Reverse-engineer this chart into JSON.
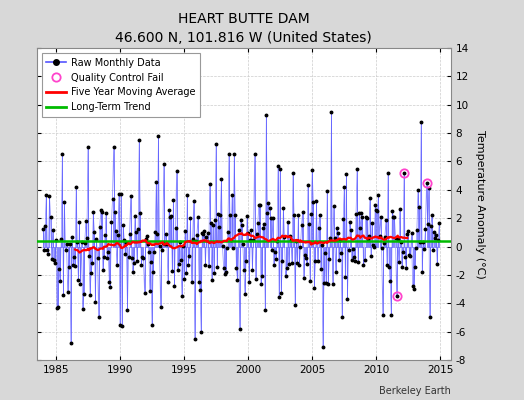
{
  "title": "HEART BUTTE DAM",
  "subtitle": "46.600 N, 101.816 W (United States)",
  "ylabel": "Temperature Anomaly (°C)",
  "credit": "Berkeley Earth",
  "start_year": 1984.0,
  "end_year": 2015.5,
  "xlim": [
    1983.5,
    2015.5
  ],
  "ylim": [
    -8,
    14
  ],
  "yticks": [
    -8,
    -6,
    -4,
    -2,
    0,
    2,
    4,
    6,
    8,
    10,
    12,
    14
  ],
  "xticks": [
    1985,
    1990,
    1995,
    2000,
    2005,
    2010,
    2015
  ],
  "long_term_trend_value": 0.42,
  "background_color": "#d8d8d8",
  "plot_bg_color": "#ffffff",
  "raw_line_color": "#5555ff",
  "raw_dot_color": "#000000",
  "moving_avg_color": "#ff0000",
  "trend_color": "#00bb00",
  "qc_fail_color": "#ff44cc",
  "qc_fail_points": [
    [
      2012.17,
      5.2
    ],
    [
      2013.92,
      4.5
    ],
    [
      2011.58,
      -3.5
    ]
  ],
  "seed": 42,
  "title_fontsize": 10,
  "subtitle_fontsize": 8.5,
  "tick_fontsize": 7.5,
  "ylabel_fontsize": 8,
  "legend_fontsize": 7,
  "credit_fontsize": 7
}
